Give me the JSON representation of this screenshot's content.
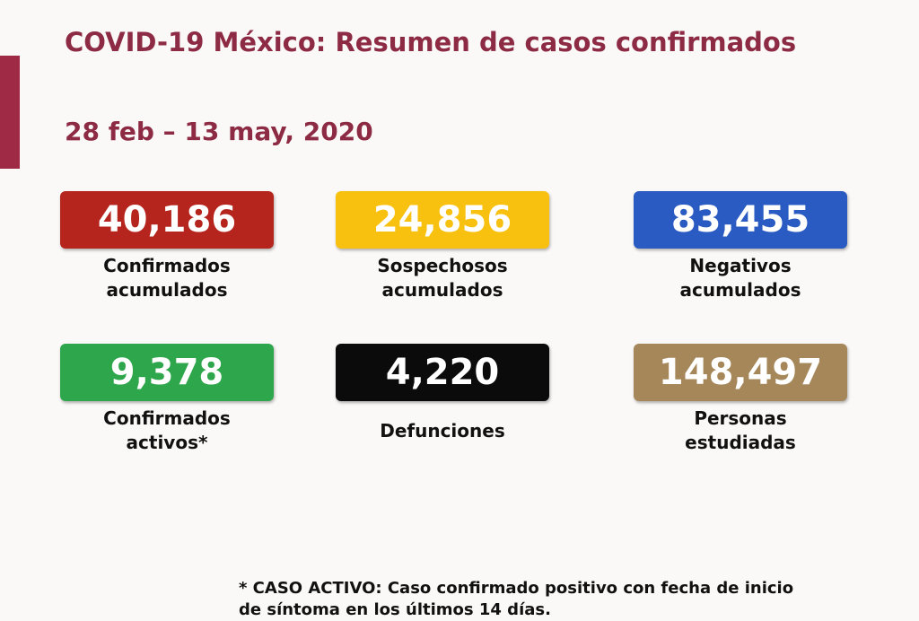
{
  "header": {
    "title": "COVID-19 México: Resumen de casos confirmados",
    "date": "28 feb – 13 may, 2020"
  },
  "cards": [
    {
      "value": "40,186",
      "label_lines": [
        "Confirmados",
        "acumulados"
      ],
      "color": "#b5251d"
    },
    {
      "value": "24,856",
      "label_lines": [
        "Sospechosos",
        "acumulados"
      ],
      "color": "#f9c10f"
    },
    {
      "value": "83,455",
      "label_lines": [
        "Negativos",
        "acumulados"
      ],
      "color": "#2a5bc2"
    },
    {
      "value": "9,378",
      "label_lines": [
        "Confirmados",
        "activos*"
      ],
      "color": "#2ea64b"
    },
    {
      "value": "4,220",
      "label_lines": [
        "Defunciones"
      ],
      "color": "#0b0b0b"
    },
    {
      "value": "148,497",
      "label_lines": [
        "Personas",
        "estudiadas"
      ],
      "color": "#a6875a"
    }
  ],
  "footnote": {
    "lines": [
      "* CASO ACTIVO: Caso confirmado positivo con fecha de inicio",
      "de síntoma en los últimos 14 días."
    ]
  }
}
